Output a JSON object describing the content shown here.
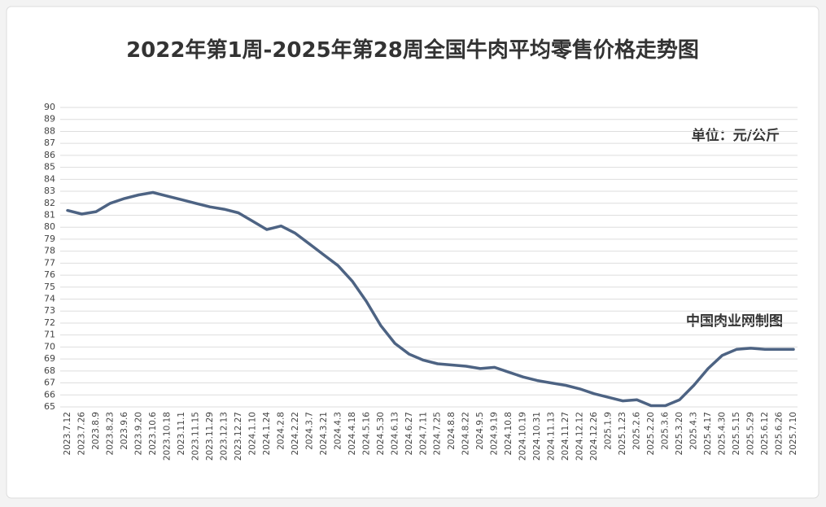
{
  "chart_data": {
    "type": "line",
    "title": "2022年第1周-2025年第28周全国牛肉平均零售价格走势图",
    "annotations": [
      "单位：元/公斤",
      "中国肉业网制图"
    ],
    "categories": [
      "2023.7.12",
      "2023.7.26",
      "2023.8.9",
      "2023.8.23",
      "2023.9.6",
      "2023.9.20",
      "2023.10.6",
      "2023.10.18",
      "2023.11.1",
      "2023.11.15",
      "2023.11.29",
      "2023.12.13",
      "2023.12.27",
      "2024.1.10",
      "2024.1.24",
      "2024.2.8",
      "2024.2.22",
      "2024.3.7",
      "2024.3.21",
      "2024.4.3",
      "2024.4.18",
      "2024.5.16",
      "2024.5.30",
      "2024.6.13",
      "2024.6.27",
      "2024.7.11",
      "2024.7.25",
      "2024.8.8",
      "2024.8.22",
      "2024.9.5",
      "2024.9.19",
      "2024.10.8",
      "2024.10.19",
      "2024.10.31",
      "2024.11.13",
      "2024.11.27",
      "2024.12.12",
      "2024.12.26",
      "2025.1.9",
      "2025.1.23",
      "2025.2.6",
      "2025.2.20",
      "2025.3.6",
      "2025.3.20",
      "2025.4.3",
      "2025.4.17",
      "2025.4.30",
      "2025.5.15",
      "2025.5.29",
      "2025.6.12",
      "2025.6.26",
      "2025.7.10"
    ],
    "values": [
      81.4,
      81.1,
      81.3,
      82.0,
      82.4,
      82.7,
      82.9,
      82.6,
      82.3,
      82.0,
      81.7,
      81.5,
      81.2,
      80.5,
      79.8,
      80.1,
      79.5,
      78.6,
      77.7,
      76.8,
      75.5,
      73.8,
      71.8,
      70.3,
      69.4,
      68.9,
      68.6,
      68.5,
      68.4,
      68.2,
      68.3,
      67.9,
      67.5,
      67.2,
      67.0,
      66.8,
      66.5,
      66.1,
      65.8,
      65.5,
      65.6,
      65.1,
      65.1,
      65.6,
      66.8,
      68.2,
      69.3,
      69.8,
      69.9,
      69.8,
      69.8,
      69.8
    ],
    "color": "#4d6383",
    "ylim": [
      65,
      90
    ],
    "yticks": [
      65,
      66,
      67,
      68,
      69,
      70,
      71,
      72,
      73,
      74,
      75,
      76,
      77,
      78,
      79,
      80,
      81,
      82,
      83,
      84,
      85,
      86,
      87,
      88,
      89,
      90
    ],
    "grid": true
  }
}
